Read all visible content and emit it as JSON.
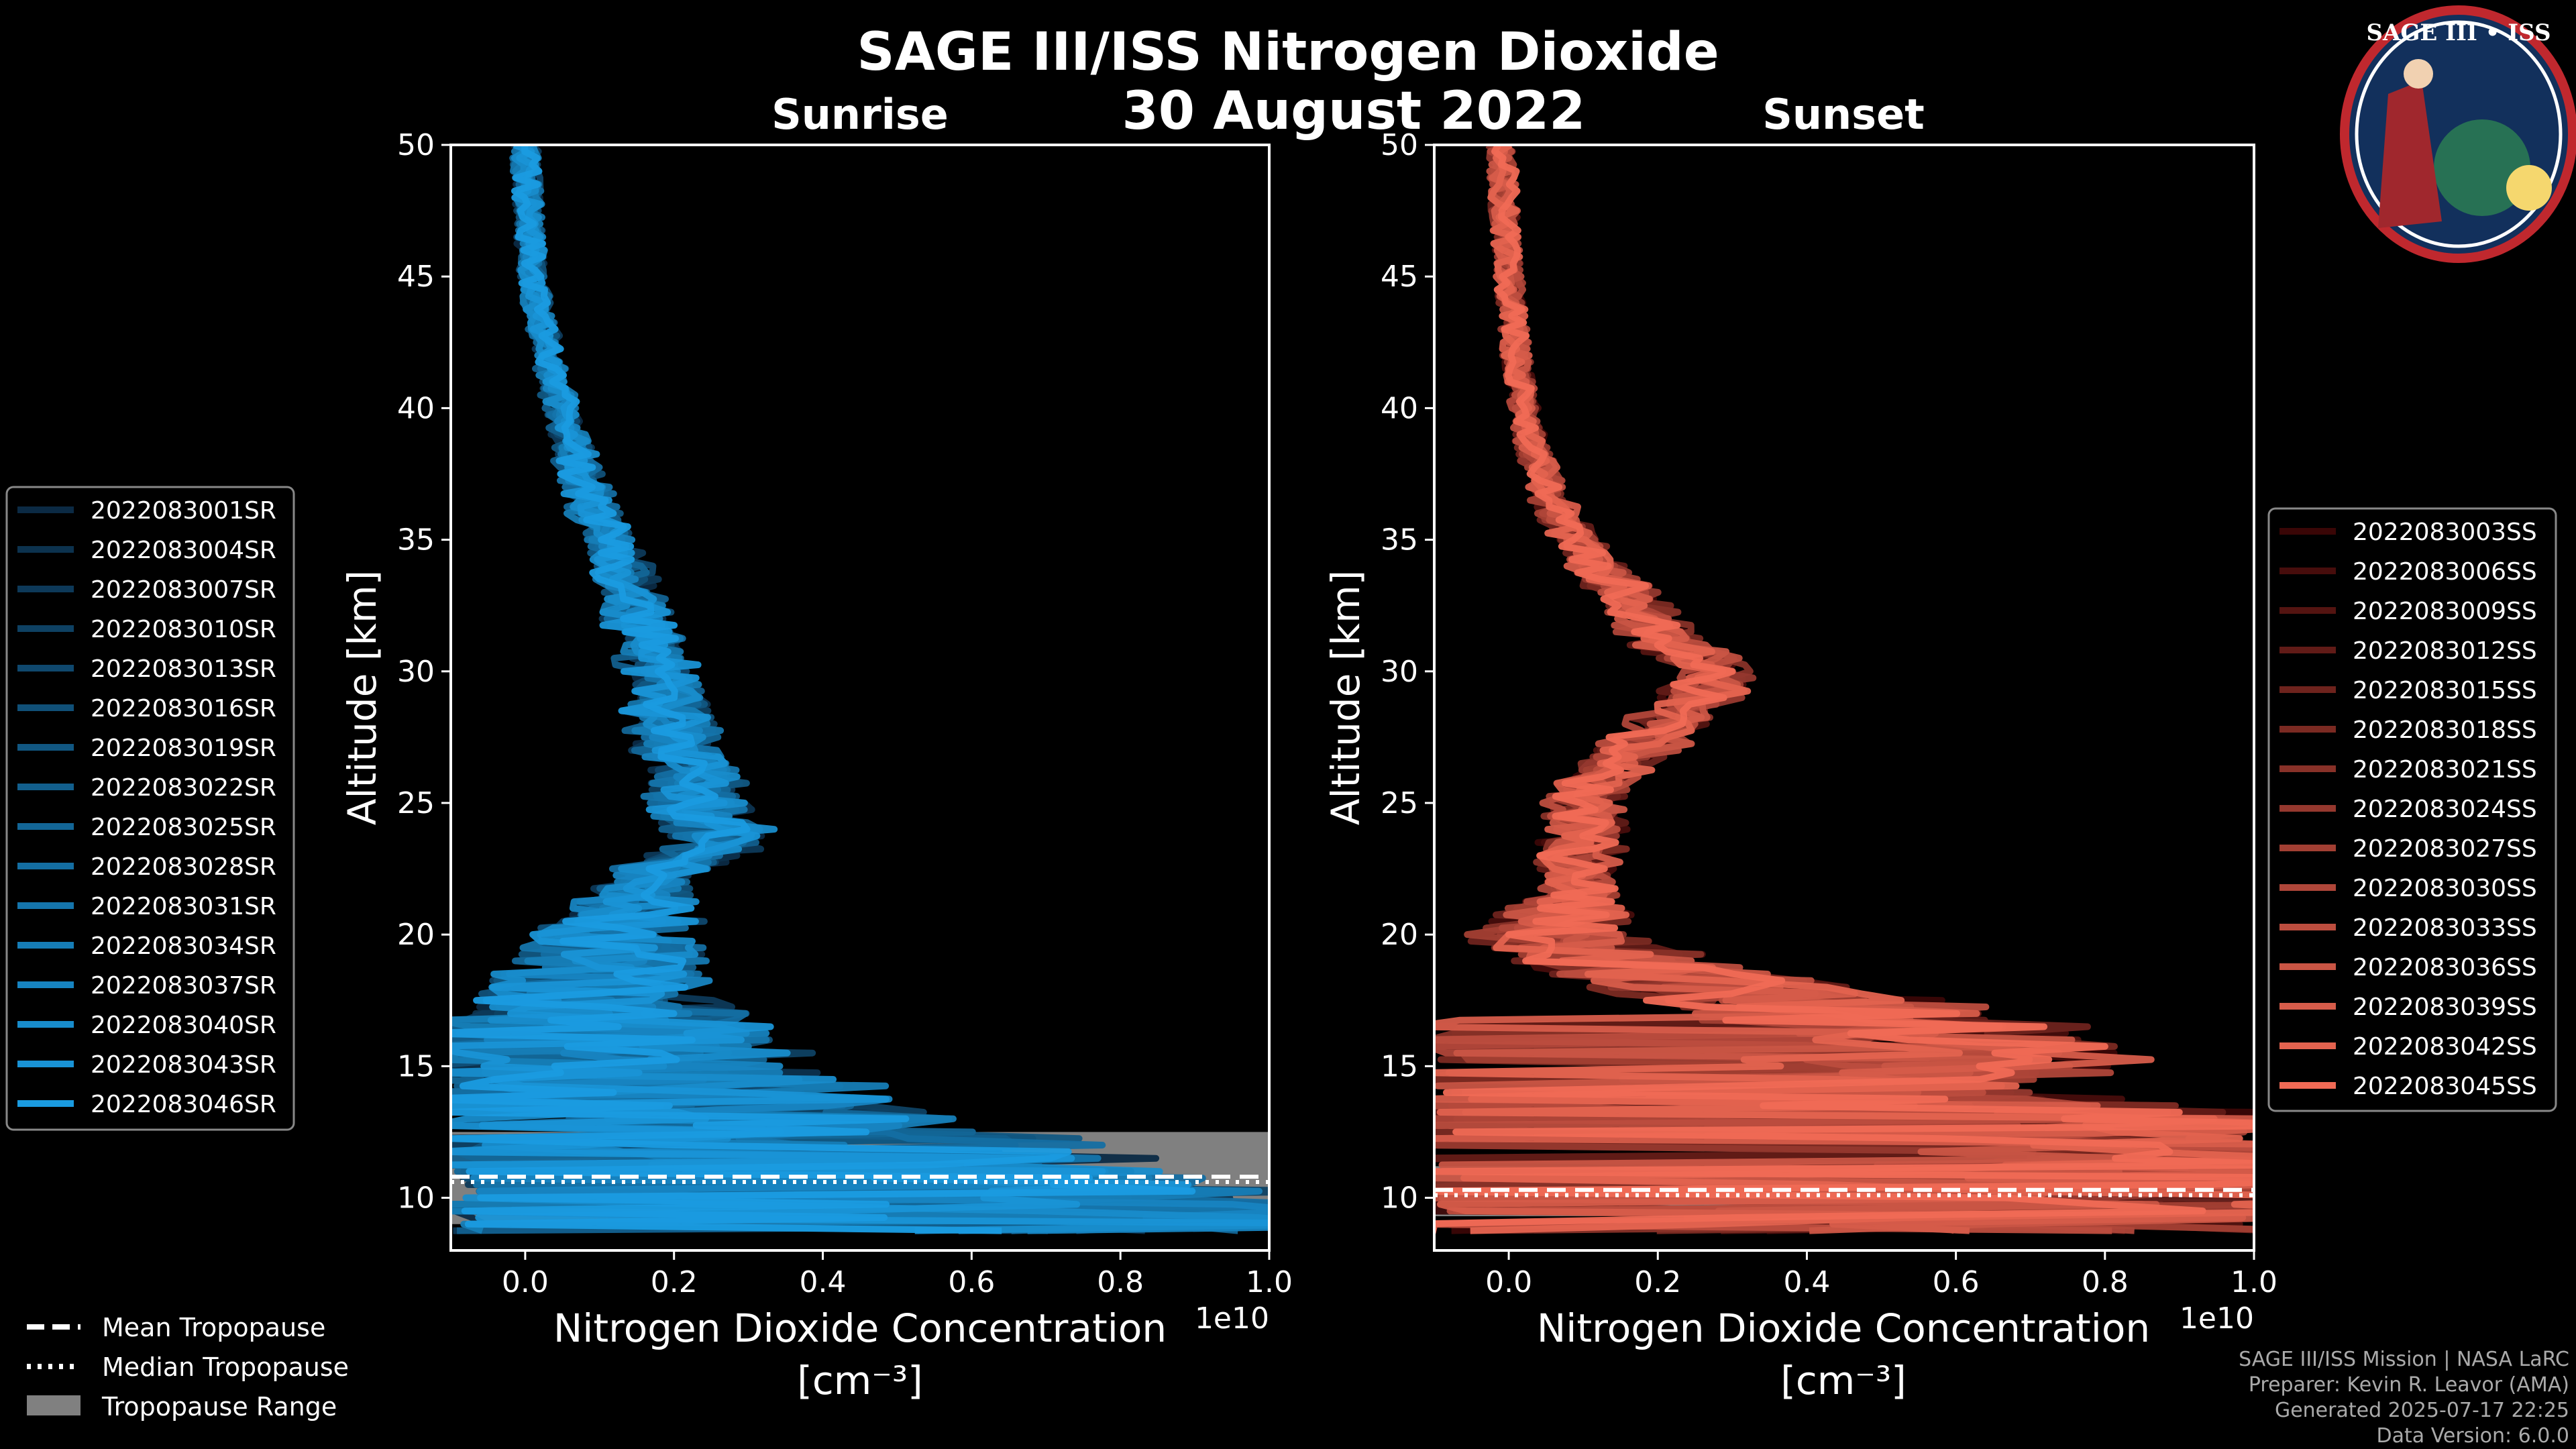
{
  "title": "SAGE III/ISS Nitrogen Dioxide",
  "subtitle": "30 August 2022",
  "logo": {
    "text": "SAGE III • ISS",
    "icon": "mission-patch-icon"
  },
  "footer": {
    "lines": [
      "SAGE III/ISS Mission | NASA LaRC",
      "Preparer: Kevin R. Leavor (AMA)",
      "Generated 2025-07-17 22:25",
      "Data Version: 6.0.0"
    ]
  },
  "tropopause_legend": {
    "mean": "Mean Tropopause",
    "median": "Median Tropopause",
    "range": "Tropopause Range"
  },
  "colors": {
    "sunrise_dark": "#0b2a44",
    "sunrise_light": "#1a9be0",
    "sunset_dark": "#3a0606",
    "sunset_light": "#f06a55",
    "tropopause_range": "#808080"
  },
  "chart_data": [
    {
      "type": "line",
      "title": "Sunrise",
      "xlabel": "Nitrogen Dioxide Concentration",
      "xlabel_units": "[cm⁻³]",
      "x_offset_label": "1e10",
      "ylabel": "Altitude [km]",
      "xlim": [
        -0.1,
        1.0
      ],
      "ylim": [
        8,
        50
      ],
      "xticks": [
        "0.0",
        "0.2",
        "0.4",
        "0.6",
        "0.8",
        "1.0"
      ],
      "yticks": [
        "10",
        "15",
        "20",
        "25",
        "30",
        "35",
        "40",
        "45",
        "50"
      ],
      "profile_altitudes": [
        50,
        47,
        45,
        42,
        40,
        37,
        35,
        33,
        31,
        29,
        27,
        25,
        23.5,
        22,
        20,
        18,
        16.5,
        15,
        14,
        13,
        12,
        11,
        10,
        9
      ],
      "profile_base_values": [
        0.0,
        0.005,
        0.01,
        0.03,
        0.05,
        0.08,
        0.11,
        0.14,
        0.17,
        0.19,
        0.21,
        0.23,
        0.27,
        0.16,
        0.12,
        0.1,
        0.12,
        0.14,
        0.22,
        0.3,
        0.42,
        0.55,
        0.7,
        0.85
      ],
      "tropopause": {
        "mean": 10.8,
        "median": 10.6,
        "range": [
          9.0,
          12.5
        ]
      },
      "series": [
        {
          "name": "2022083001SR"
        },
        {
          "name": "2022083004SR"
        },
        {
          "name": "2022083007SR"
        },
        {
          "name": "2022083010SR"
        },
        {
          "name": "2022083013SR"
        },
        {
          "name": "2022083016SR"
        },
        {
          "name": "2022083019SR"
        },
        {
          "name": "2022083022SR"
        },
        {
          "name": "2022083025SR"
        },
        {
          "name": "2022083028SR"
        },
        {
          "name": "2022083031SR"
        },
        {
          "name": "2022083034SR"
        },
        {
          "name": "2022083037SR"
        },
        {
          "name": "2022083040SR"
        },
        {
          "name": "2022083043SR"
        },
        {
          "name": "2022083046SR"
        }
      ]
    },
    {
      "type": "line",
      "title": "Sunset",
      "xlabel": "Nitrogen Dioxide Concentration",
      "xlabel_units": "[cm⁻³]",
      "x_offset_label": "1e10",
      "ylabel": "Altitude [km]",
      "xlim": [
        -0.1,
        1.0
      ],
      "ylim": [
        8,
        50
      ],
      "xticks": [
        "0.0",
        "0.2",
        "0.4",
        "0.6",
        "0.8",
        "1.0"
      ],
      "yticks": [
        "10",
        "15",
        "20",
        "25",
        "30",
        "35",
        "40",
        "45",
        "50"
      ],
      "profile_altitudes": [
        50,
        47,
        45,
        42,
        40,
        37,
        35,
        33,
        31,
        30,
        28,
        26,
        25,
        23,
        21,
        20,
        19,
        17,
        16,
        15,
        14,
        13,
        12,
        11,
        10,
        9
      ],
      "profile_base_values": [
        -0.01,
        -0.005,
        0.0,
        0.01,
        0.02,
        0.05,
        0.09,
        0.15,
        0.22,
        0.28,
        0.22,
        0.12,
        0.1,
        0.1,
        0.08,
        0.05,
        0.15,
        0.45,
        0.6,
        0.55,
        0.4,
        0.75,
        0.95,
        0.9,
        0.8,
        0.6
      ],
      "tropopause": {
        "mean": 10.3,
        "median": 10.1,
        "range": [
          9.3,
          11.2
        ]
      },
      "series": [
        {
          "name": "2022083003SS"
        },
        {
          "name": "2022083006SS"
        },
        {
          "name": "2022083009SS"
        },
        {
          "name": "2022083012SS"
        },
        {
          "name": "2022083015SS"
        },
        {
          "name": "2022083018SS"
        },
        {
          "name": "2022083021SS"
        },
        {
          "name": "2022083024SS"
        },
        {
          "name": "2022083027SS"
        },
        {
          "name": "2022083030SS"
        },
        {
          "name": "2022083033SS"
        },
        {
          "name": "2022083036SS"
        },
        {
          "name": "2022083039SS"
        },
        {
          "name": "2022083042SS"
        },
        {
          "name": "2022083045SS"
        }
      ]
    }
  ]
}
